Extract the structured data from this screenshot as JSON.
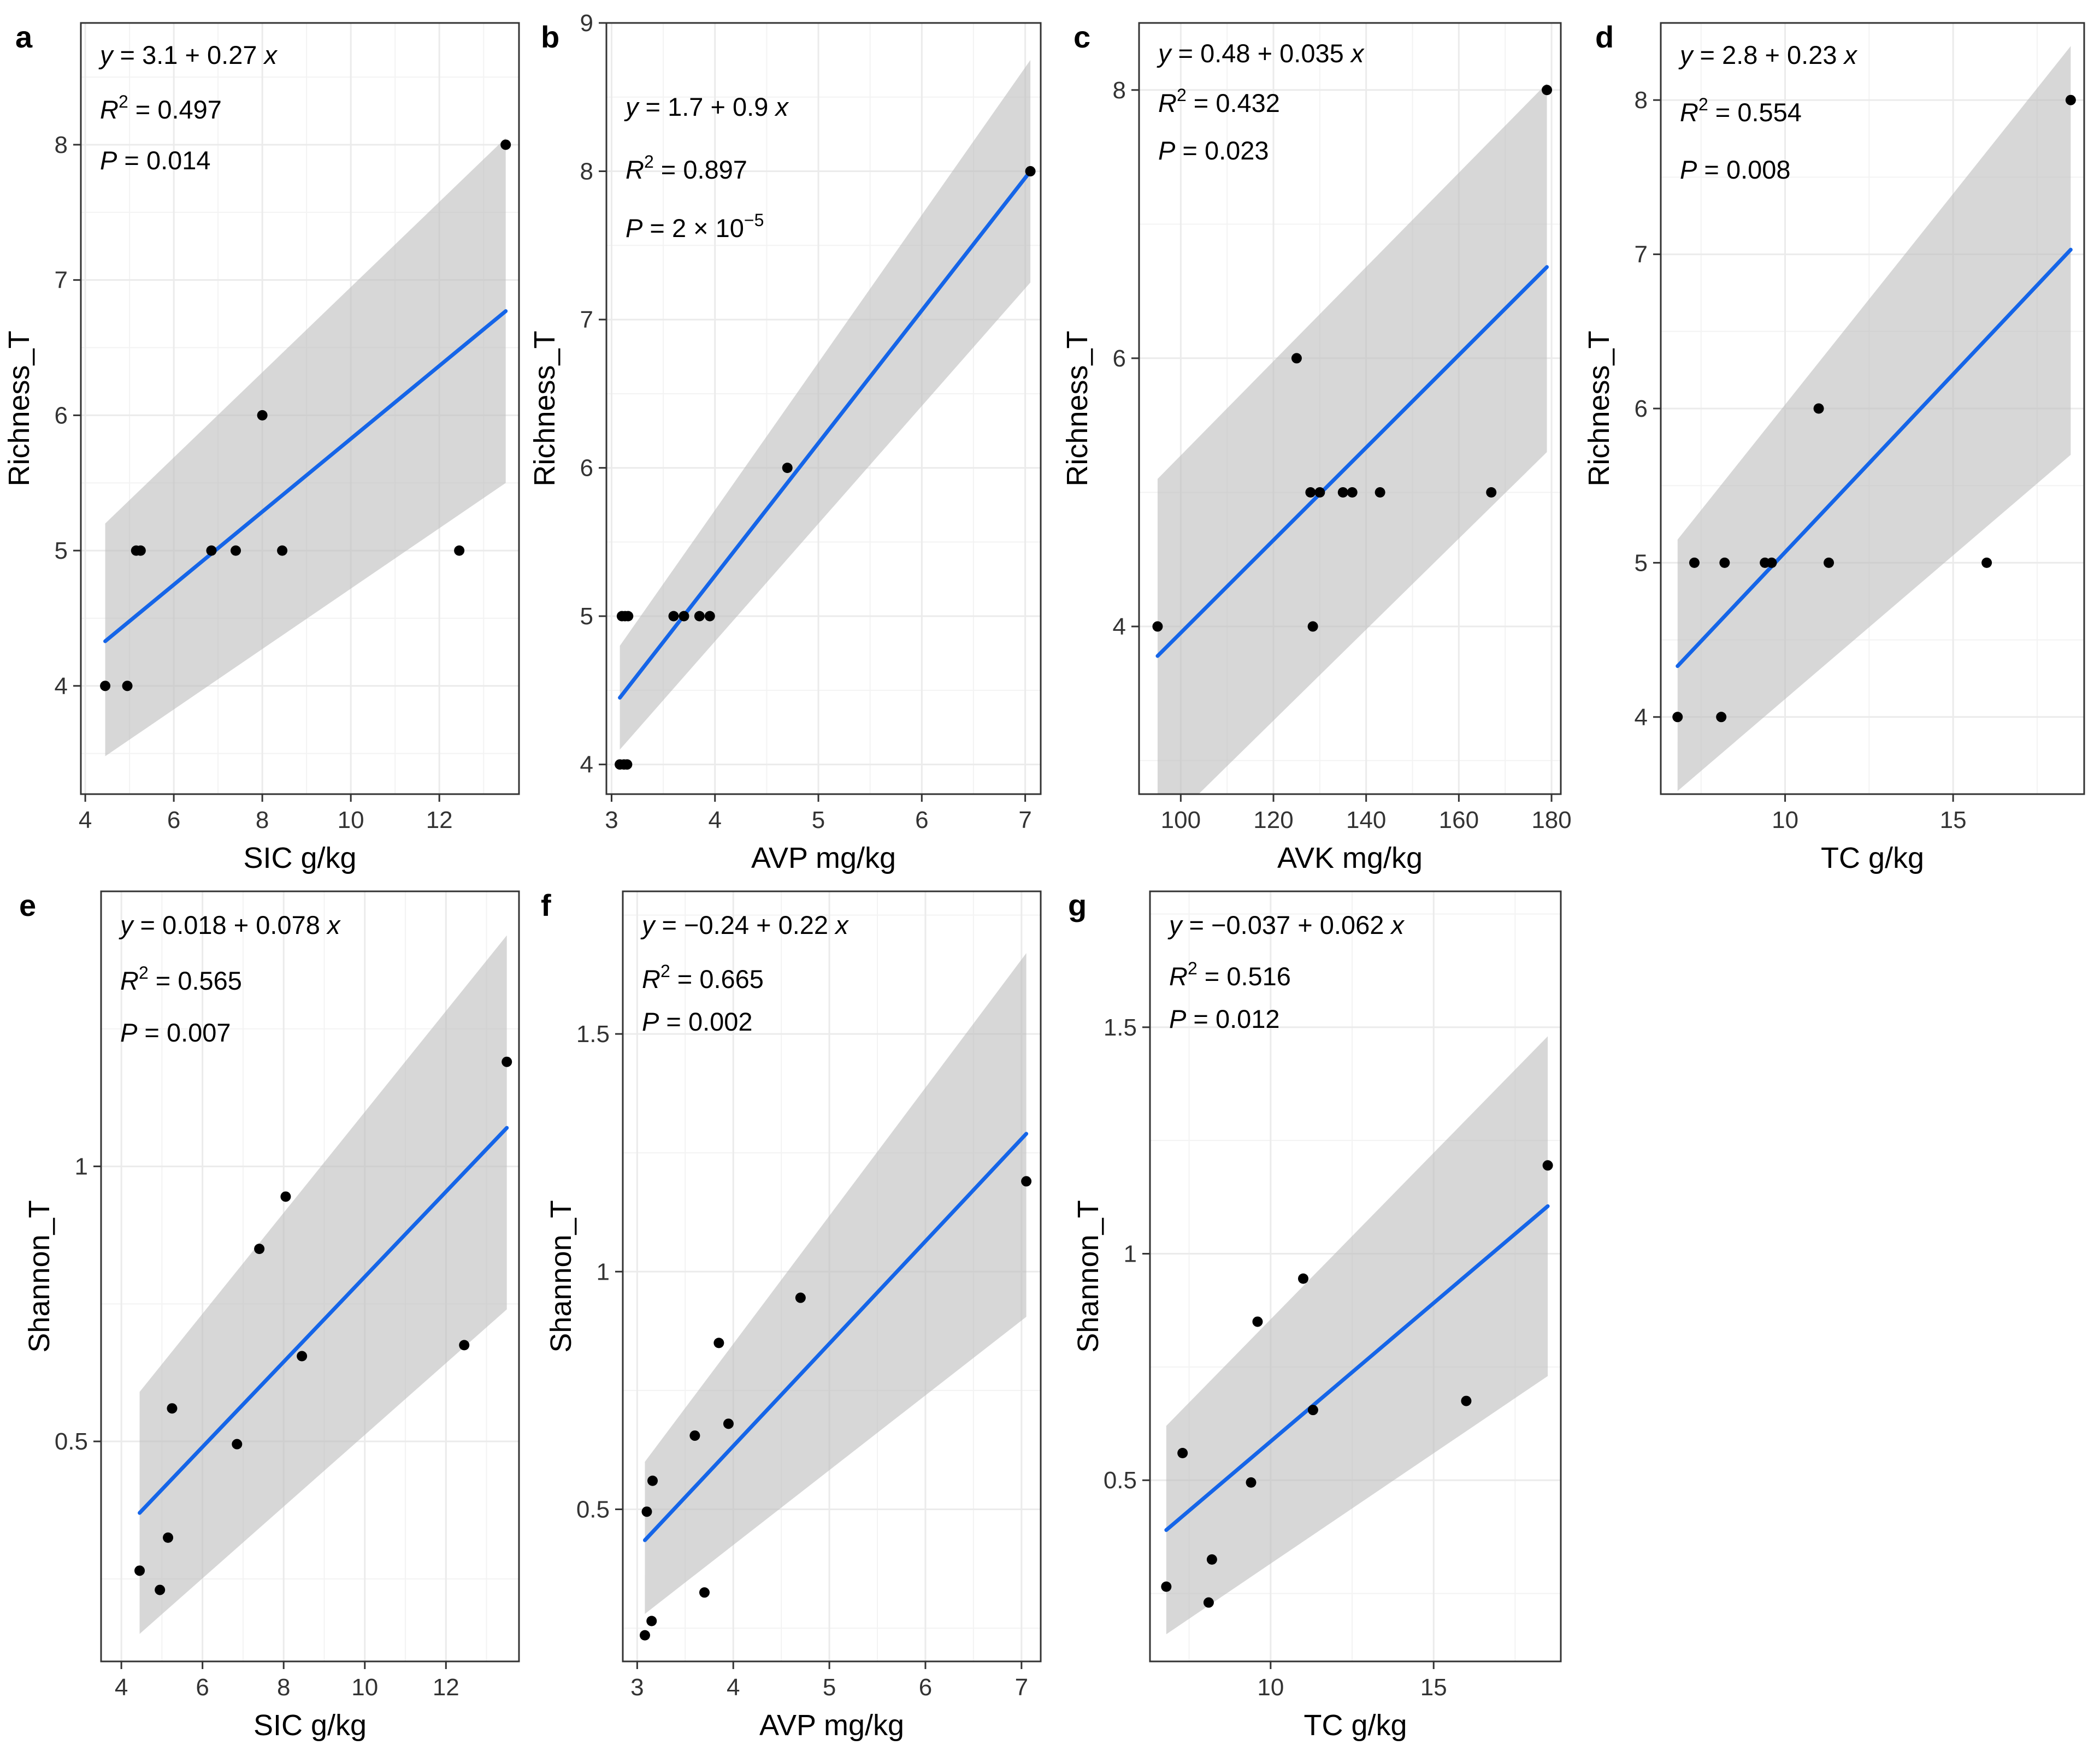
{
  "chart_data": [
    {
      "type": "scatter",
      "panel": "a",
      "xlabel": "SIC g/kg",
      "ylabel": "Richness_T",
      "xlim": [
        3.9,
        13.8
      ],
      "ylim": [
        3.2,
        8.9
      ],
      "xticks": [
        4,
        6,
        8,
        10,
        12
      ],
      "yticks": [
        4,
        5,
        6,
        7,
        8
      ],
      "equation": {
        "intercept": "3.1",
        "sign": "+",
        "slope": "0.27"
      },
      "r2": "0.497",
      "p": "0.014",
      "p_exp": "",
      "points": [
        [
          4.45,
          4
        ],
        [
          4.95,
          4
        ],
        [
          5.15,
          5
        ],
        [
          5.25,
          5
        ],
        [
          6.85,
          5
        ],
        [
          7.4,
          5
        ],
        [
          8.0,
          6
        ],
        [
          8.45,
          5
        ],
        [
          12.45,
          5
        ],
        [
          13.5,
          8
        ]
      ],
      "fit": {
        "x": [
          4.45,
          13.5
        ],
        "y": [
          4.33,
          6.77
        ],
        "lower": [
          3.48,
          5.5
        ],
        "upper": [
          5.2,
          8.05
        ]
      }
    },
    {
      "type": "scatter",
      "panel": "b",
      "xlabel": "AVP mg/kg",
      "ylabel": "Richness_T",
      "xlim": [
        2.95,
        7.15
      ],
      "ylim": [
        3.8,
        9.0
      ],
      "xticks": [
        3,
        4,
        5,
        6,
        7
      ],
      "yticks": [
        4,
        5,
        6,
        7,
        8,
        9
      ],
      "equation": {
        "intercept": "1.7",
        "sign": "+",
        "slope": "0.9"
      },
      "r2": "0.897",
      "p": "2 × 10",
      "p_exp": "−5",
      "points": [
        [
          3.08,
          4
        ],
        [
          3.12,
          4
        ],
        [
          3.15,
          4
        ],
        [
          3.1,
          5
        ],
        [
          3.13,
          5
        ],
        [
          3.16,
          5
        ],
        [
          3.6,
          5
        ],
        [
          3.7,
          5
        ],
        [
          3.85,
          5
        ],
        [
          3.95,
          5
        ],
        [
          4.7,
          6
        ],
        [
          7.05,
          8
        ]
      ],
      "fit": {
        "x": [
          3.08,
          7.05
        ],
        "y": [
          4.45,
          8.0
        ],
        "lower": [
          4.1,
          7.25
        ],
        "upper": [
          4.8,
          8.75
        ]
      }
    },
    {
      "type": "scatter",
      "panel": "c",
      "xlabel": "AVK mg/kg",
      "ylabel": "Richness_T",
      "xlim": [
        91,
        182
      ],
      "ylim": [
        2.75,
        8.5
      ],
      "xticks": [
        100,
        120,
        140,
        160,
        180
      ],
      "yticks": [
        4,
        6,
        8
      ],
      "equation": {
        "intercept": "0.48",
        "sign": "+",
        "slope": "0.035"
      },
      "r2": "0.432",
      "p": "0.023",
      "p_exp": "",
      "points": [
        [
          95,
          4
        ],
        [
          125,
          6
        ],
        [
          128,
          5
        ],
        [
          128.5,
          4
        ],
        [
          130,
          5
        ],
        [
          135,
          5
        ],
        [
          137,
          5
        ],
        [
          143,
          5
        ],
        [
          167,
          5
        ],
        [
          179,
          8
        ]
      ],
      "fit": {
        "x": [
          95,
          179
        ],
        "y": [
          3.78,
          6.68
        ],
        "lower": [
          2.45,
          5.3
        ],
        "upper": [
          5.1,
          8.05
        ]
      }
    },
    {
      "type": "scatter",
      "panel": "d",
      "xlabel": "TC g/kg",
      "ylabel": "Richness_T",
      "xlim": [
        6.3,
        18.9
      ],
      "ylim": [
        3.5,
        8.5
      ],
      "xticks": [
        10,
        15
      ],
      "yticks": [
        4,
        5,
        6,
        7,
        8
      ],
      "equation": {
        "intercept": "2.8",
        "sign": "+",
        "slope": "0.23"
      },
      "r2": "0.554",
      "p": "0.008",
      "p_exp": "",
      "points": [
        [
          6.8,
          4
        ],
        [
          7.3,
          5
        ],
        [
          8.1,
          4
        ],
        [
          8.2,
          5
        ],
        [
          9.4,
          5
        ],
        [
          9.6,
          5
        ],
        [
          11.0,
          6
        ],
        [
          11.3,
          5
        ],
        [
          16.0,
          5
        ],
        [
          18.5,
          8
        ]
      ],
      "fit": {
        "x": [
          6.8,
          18.5
        ],
        "y": [
          4.33,
          7.03
        ],
        "lower": [
          3.52,
          5.7
        ],
        "upper": [
          5.15,
          8.35
        ]
      }
    },
    {
      "type": "scatter",
      "panel": "e",
      "xlabel": "SIC g/kg",
      "ylabel": "Shannon_T",
      "xlim": [
        3.5,
        13.8
      ],
      "ylim": [
        0.1,
        1.5
      ],
      "xticks": [
        4,
        6,
        8,
        10,
        12
      ],
      "yticks": [
        0.5,
        1.0
      ],
      "equation": {
        "intercept": "0.018",
        "sign": "+",
        "slope": "0.078"
      },
      "r2": "0.565",
      "p": "0.007",
      "p_exp": "",
      "points": [
        [
          4.45,
          0.265
        ],
        [
          4.95,
          0.23
        ],
        [
          5.15,
          0.325
        ],
        [
          5.25,
          0.56
        ],
        [
          6.85,
          0.495
        ],
        [
          7.4,
          0.85
        ],
        [
          8.05,
          0.945
        ],
        [
          8.45,
          0.655
        ],
        [
          12.45,
          0.675
        ],
        [
          13.5,
          1.19
        ]
      ],
      "fit": {
        "x": [
          4.45,
          13.5
        ],
        "y": [
          0.37,
          1.07
        ],
        "lower": [
          0.15,
          0.74
        ],
        "upper": [
          0.59,
          1.42
        ]
      }
    },
    {
      "type": "scatter",
      "panel": "f",
      "xlabel": "AVP mg/kg",
      "ylabel": "Shannon_T",
      "xlim": [
        2.85,
        7.2
      ],
      "ylim": [
        0.18,
        1.8
      ],
      "xticks": [
        3,
        4,
        5,
        6,
        7
      ],
      "yticks": [
        0.5,
        1.0,
        1.5
      ],
      "equation": {
        "intercept": "0.24",
        "sign": "−",
        "slope": "0.22"
      },
      "r2": "0.665",
      "p": "0.002",
      "p_exp": "",
      "points": [
        [
          3.08,
          0.235
        ],
        [
          3.1,
          0.495
        ],
        [
          3.15,
          0.265
        ],
        [
          3.16,
          0.56
        ],
        [
          3.6,
          0.655
        ],
        [
          3.7,
          0.325
        ],
        [
          3.85,
          0.85
        ],
        [
          3.95,
          0.68
        ],
        [
          4.7,
          0.945
        ],
        [
          7.05,
          1.19
        ]
      ],
      "fit": {
        "x": [
          3.08,
          7.05
        ],
        "y": [
          0.435,
          1.29
        ],
        "lower": [
          0.28,
          0.905
        ],
        "upper": [
          0.6,
          1.67
        ]
      }
    },
    {
      "type": "scatter",
      "panel": "g",
      "xlabel": "TC g/kg",
      "ylabel": "Shannon_T",
      "xlim": [
        6.3,
        18.9
      ],
      "ylim": [
        0.1,
        1.8
      ],
      "xticks": [
        10,
        15
      ],
      "yticks": [
        0.5,
        1.0,
        1.5
      ],
      "equation": {
        "intercept": "0.037",
        "sign": "−",
        "slope": "0.062"
      },
      "r2": "0.516",
      "p": "0.012",
      "p_exp": "",
      "points": [
        [
          6.8,
          0.265
        ],
        [
          7.3,
          0.56
        ],
        [
          8.1,
          0.23
        ],
        [
          8.2,
          0.325
        ],
        [
          9.4,
          0.495
        ],
        [
          9.6,
          0.85
        ],
        [
          11.0,
          0.945
        ],
        [
          11.3,
          0.655
        ],
        [
          16.0,
          0.675
        ],
        [
          18.5,
          1.195
        ]
      ],
      "fit": {
        "x": [
          6.8,
          18.5
        ],
        "y": [
          0.39,
          1.105
        ],
        "lower": [
          0.16,
          0.73
        ],
        "upper": [
          0.62,
          1.48
        ]
      }
    }
  ]
}
